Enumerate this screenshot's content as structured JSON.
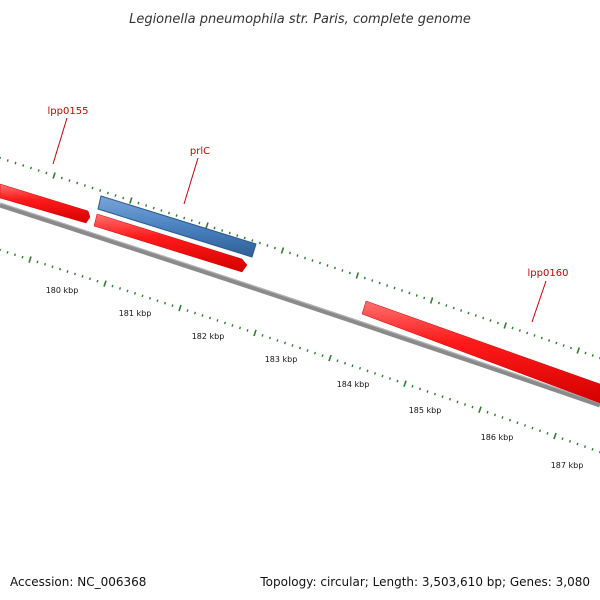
{
  "header": {
    "title": "Legionella pneumophila str. Paris, complete genome"
  },
  "genes": [
    {
      "id": "lpp0155",
      "label": "lpp0155",
      "color": "#ff0000",
      "strand": "forward"
    },
    {
      "id": "prlC",
      "label": "prlC",
      "color": "#4a82c0",
      "strand": "forward"
    },
    {
      "id": "unnamed",
      "label": "",
      "color": "#ff0000",
      "strand": "reverse"
    },
    {
      "id": "lpp0160",
      "label": "lpp0160",
      "color": "#ff0000",
      "strand": "forward"
    }
  ],
  "scale_labels": [
    "180 kbp",
    "181 kbp",
    "182 kbp",
    "183 kbp",
    "184 kbp",
    "185 kbp",
    "186 kbp",
    "187 kbp"
  ],
  "footer": {
    "accession": "Accession: NC_006368",
    "summary": "Topology: circular; Length: 3,503,610 bp; Genes: 3,080"
  },
  "colors": {
    "backbone": "#7a7a7a",
    "tick": "#2f7d2f",
    "gene_red": "#ff0000",
    "gene_blue": "#4a82c0",
    "label_red": "#cc0000"
  }
}
